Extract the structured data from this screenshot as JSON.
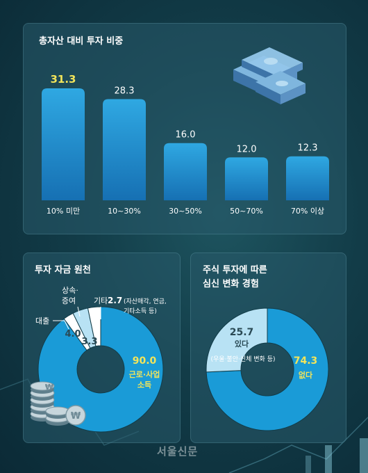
{
  "charts": {
    "allocation": {
      "title": "총자산 대비 투자 비중"
    },
    "source": {
      "title": "투자 자금 원천",
      "labels": {
        "labor_name": "근로·사업",
        "labor_name2": "소득",
        "inherit_name1": "상속·",
        "inherit_name2": "증여",
        "other_name": "기타",
        "other_note1": "(자산매각, 연금,",
        "other_note2": "기타소득 등)",
        "loan_name": "대출"
      }
    },
    "emotion": {
      "title_line1": "주식 투자에 따른",
      "title_line2": "심신 변화 경험",
      "labels": {
        "yes_name": "있다",
        "yes_note": "(우울·불안·신체 변화 등)",
        "no_name": "없다"
      }
    }
  },
  "watermark": "서울신문",
  "colors": {
    "bar": "#2a9fd8",
    "highlight": "#f2e45a",
    "donut_main": "#1a9bd7",
    "donut_light": "#b8e2f4",
    "donut_white": "#ffffff"
  },
  "chart_data": [
    {
      "type": "bar",
      "title": "총자산 대비 투자 비중",
      "categories": [
        "10% 미만",
        "10~30%",
        "30~50%",
        "50~70%",
        "70% 이상"
      ],
      "values": [
        31.3,
        28.3,
        16.0,
        12.0,
        12.3
      ],
      "value_labels": [
        "31.3",
        "28.3",
        "16.0",
        "12.0",
        "12.3"
      ],
      "highlight_index": 0,
      "xlabel": "",
      "ylabel": "",
      "ylim": [
        0,
        35
      ]
    },
    {
      "type": "pie",
      "title": "투자 자금 원천",
      "categories": [
        "근로·사업 소득",
        "기타",
        "상속·증여",
        "대출"
      ],
      "values": [
        90.0,
        2.7,
        4.0,
        3.3
      ],
      "value_labels": [
        "90.0",
        "2.7",
        "4.0",
        "3.3"
      ]
    },
    {
      "type": "pie",
      "title": "주식 투자에 따른 심신 변화 경험",
      "categories": [
        "없다",
        "있다"
      ],
      "values": [
        74.3,
        25.7
      ],
      "value_labels": [
        "74.3",
        "25.7"
      ]
    }
  ]
}
